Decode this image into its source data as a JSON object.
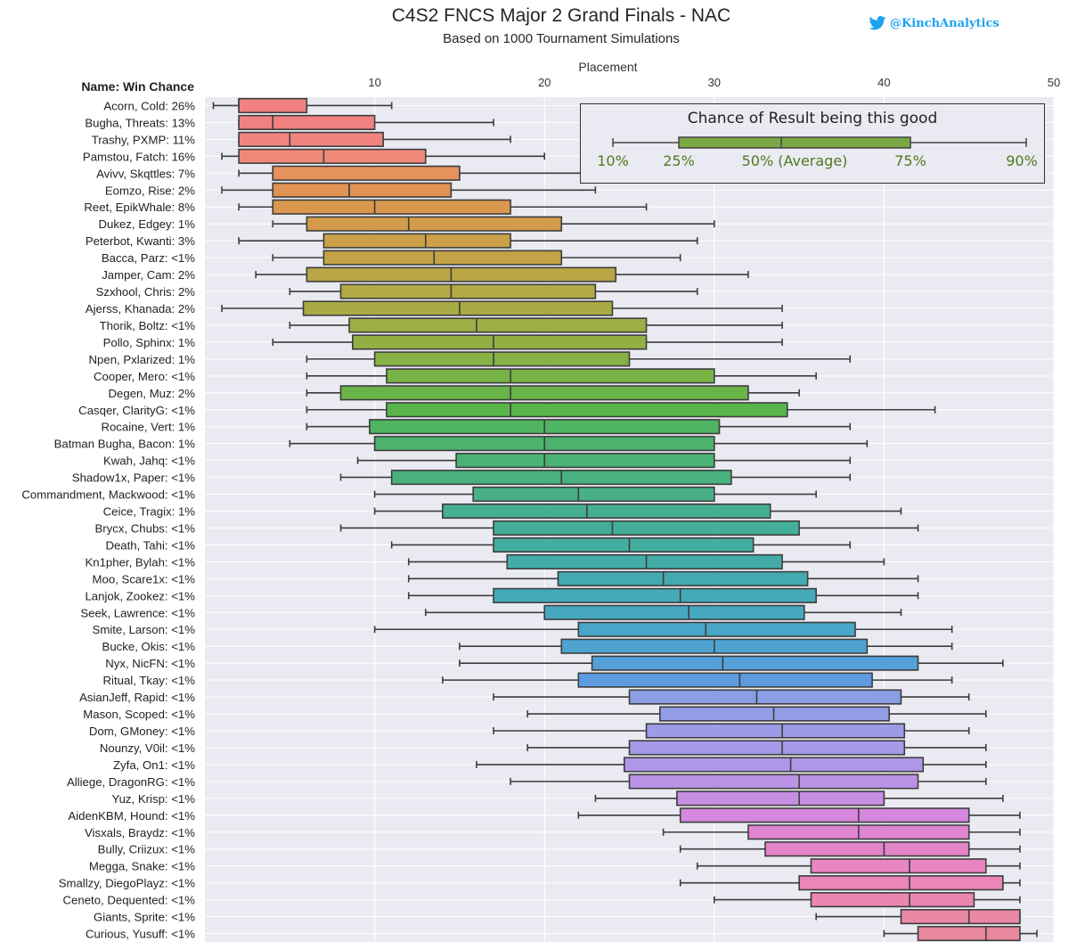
{
  "header": {
    "title": "C4S2 FNCS Major 2 Grand Finals - NAC",
    "subtitle": "Based on 1000 Tournament Simulations",
    "handle": "@KinchAnalytics"
  },
  "legend": {
    "title": "Chance of Result being this good",
    "labels": [
      "10%",
      "25%",
      "50% (Average)",
      "75%",
      "90%"
    ],
    "color": "#7aa843"
  },
  "chart_data": {
    "type": "boxplot",
    "title": "C4S2 FNCS Major 2 Grand Finals - NAC",
    "subtitle": "Based on 1000 Tournament Simulations",
    "xlabel": "Placement",
    "ylabel": "Name: Win Chance",
    "xlim": [
      0,
      50
    ],
    "xticks": [
      10,
      20,
      30,
      40,
      50
    ],
    "tick_position": "top",
    "stats_order": [
      "p10",
      "p25",
      "median",
      "p75",
      "p90"
    ],
    "teams": [
      {
        "label": "Acorn, Cold: 26%",
        "stats": [
          0.5,
          2,
          2,
          6,
          11
        ],
        "color": "#f08180"
      },
      {
        "label": "Bugha, Threats: 13%",
        "stats": [
          2,
          2,
          4,
          10,
          17
        ],
        "color": "#f08180"
      },
      {
        "label": "Trashy, PXMP: 11%",
        "stats": [
          2,
          2,
          5,
          10.5,
          18
        ],
        "color": "#f08580"
      },
      {
        "label": "Pamstou, Fatch: 16%",
        "stats": [
          1,
          2,
          7,
          13,
          20
        ],
        "color": "#f0887a"
      },
      {
        "label": "Avivv, Skqttles: 7%",
        "stats": [
          2,
          4,
          4,
          15,
          25
        ],
        "color": "#e3925c"
      },
      {
        "label": "Eomzo, Rise: 2%",
        "stats": [
          1,
          4,
          8.5,
          14.5,
          23
        ],
        "color": "#e09355"
      },
      {
        "label": "Reet, EpikWhale: 8%",
        "stats": [
          2,
          4,
          10,
          18,
          26
        ],
        "color": "#d9984e"
      },
      {
        "label": "Dukez, Edgey: 1%",
        "stats": [
          4,
          6,
          12,
          21,
          30
        ],
        "color": "#d39c4a"
      },
      {
        "label": "Peterbot, Kwanti: 3%",
        "stats": [
          2,
          7,
          13,
          18,
          29
        ],
        "color": "#cba048"
      },
      {
        "label": "Bacca, Parz: <1%",
        "stats": [
          4,
          7,
          13.5,
          21,
          28
        ],
        "color": "#c3a346"
      },
      {
        "label": "Jamper, Cam: 2%",
        "stats": [
          3,
          6,
          14.5,
          24.2,
          32
        ],
        "color": "#bba645"
      },
      {
        "label": "Szxhool, Chris: 2%",
        "stats": [
          5,
          8,
          14.5,
          23,
          29
        ],
        "color": "#b3a944"
      },
      {
        "label": "Ajerss, Khanada: 2%",
        "stats": [
          1,
          5.8,
          15,
          24,
          34
        ],
        "color": "#a9ab44"
      },
      {
        "label": "Thorik, Boltz: <1%",
        "stats": [
          5,
          8.5,
          16,
          26,
          34
        ],
        "color": "#9ead44"
      },
      {
        "label": "Pollo, Sphinx: 1%",
        "stats": [
          4,
          8.7,
          17,
          26,
          34
        ],
        "color": "#93af44"
      },
      {
        "label": "Npen, Pxlarized: 1%",
        "stats": [
          6,
          10,
          17,
          25,
          38
        ],
        "color": "#86b145"
      },
      {
        "label": "Cooper, Mero: <1%",
        "stats": [
          6,
          10.7,
          18,
          30,
          36
        ],
        "color": "#78b346"
      },
      {
        "label": "Degen, Muz: 2%",
        "stats": [
          6,
          8,
          18,
          32,
          35
        ],
        "color": "#69b448"
      },
      {
        "label": "Casqer, ClarityG: <1%",
        "stats": [
          6,
          10.7,
          18,
          34.3,
          43
        ],
        "color": "#58b54c"
      },
      {
        "label": "Rocaine, Vert: 1%",
        "stats": [
          6,
          9.7,
          20,
          30.3,
          38
        ],
        "color": "#4fb462"
      },
      {
        "label": "Batman Bugha, Bacon: 1%",
        "stats": [
          5,
          10,
          20,
          30,
          39
        ],
        "color": "#4db36c"
      },
      {
        "label": "Kwah, Jahq: <1%",
        "stats": [
          9,
          14.8,
          20,
          30,
          38
        ],
        "color": "#4bb276"
      },
      {
        "label": "Shadow1x, Paper: <1%",
        "stats": [
          8,
          11,
          21,
          31,
          38
        ],
        "color": "#49b17f"
      },
      {
        "label": "Commandment, Mackwood: <1%",
        "stats": [
          10,
          15.8,
          22,
          30,
          36
        ],
        "color": "#47b088"
      },
      {
        "label": "Ceice, Tragix: 1%",
        "stats": [
          10,
          14,
          22.5,
          33.3,
          41
        ],
        "color": "#46af90"
      },
      {
        "label": "Brycx, Chubs: <1%",
        "stats": [
          8,
          17,
          24,
          35,
          42
        ],
        "color": "#44ae98"
      },
      {
        "label": "Death, Tahi: <1%",
        "stats": [
          11,
          17,
          25,
          32.3,
          38
        ],
        "color": "#43ada0"
      },
      {
        "label": "Kn1pher, Bylah: <1%",
        "stats": [
          12,
          17.8,
          26,
          34,
          40
        ],
        "color": "#43aca8"
      },
      {
        "label": "Moo, Scare1x: <1%",
        "stats": [
          12,
          20.8,
          27,
          35.5,
          42
        ],
        "color": "#43abb0"
      },
      {
        "label": "Lanjok, Zookez: <1%",
        "stats": [
          12,
          17,
          28,
          36,
          42
        ],
        "color": "#44aab8"
      },
      {
        "label": "Seek, Lawrence: <1%",
        "stats": [
          13,
          20,
          28.5,
          35.3,
          41
        ],
        "color": "#46a8c0"
      },
      {
        "label": "Smite, Larson: <1%",
        "stats": [
          10,
          22,
          29.5,
          38.3,
          44
        ],
        "color": "#49a6c8"
      },
      {
        "label": "Bucke, Okis: <1%",
        "stats": [
          15,
          21,
          30,
          39,
          44
        ],
        "color": "#4ea3d0"
      },
      {
        "label": "Nyx, NicFN: <1%",
        "stats": [
          15,
          22.8,
          30.5,
          42,
          47
        ],
        "color": "#55a0d8"
      },
      {
        "label": "Ritual, Tkay: <1%",
        "stats": [
          14,
          22,
          31.5,
          39.3,
          44
        ],
        "color": "#5e9cdf"
      },
      {
        "label": "AsianJeff, Rapid: <1%",
        "stats": [
          17,
          25,
          32.5,
          41,
          45
        ],
        "color": "#8a9ee4"
      },
      {
        "label": "Mason, Scoped: <1%",
        "stats": [
          19,
          26.8,
          33.5,
          40.3,
          46
        ],
        "color": "#939de6"
      },
      {
        "label": "Dom, GMoney: <1%",
        "stats": [
          17,
          26,
          34,
          41.2,
          45
        ],
        "color": "#9d9be8"
      },
      {
        "label": "Nounzy, V0il: <1%",
        "stats": [
          19,
          25,
          34,
          41.2,
          46
        ],
        "color": "#a699e8"
      },
      {
        "label": "Zyfa, On1: <1%",
        "stats": [
          16,
          24.7,
          34.5,
          42.3,
          46
        ],
        "color": "#b096e8"
      },
      {
        "label": "Alliege, DragonRG: <1%",
        "stats": [
          18,
          25,
          35,
          42,
          46
        ],
        "color": "#bb92e6"
      },
      {
        "label": "Yuz, Krisp: <1%",
        "stats": [
          23,
          27.8,
          35,
          40,
          47
        ],
        "color": "#c78ee2"
      },
      {
        "label": "AidenKBM, Hound: <1%",
        "stats": [
          22,
          28,
          38.5,
          45,
          48
        ],
        "color": "#d487dc"
      },
      {
        "label": "Visxals, Braydz: <1%",
        "stats": [
          27,
          32,
          38.5,
          45,
          48
        ],
        "color": "#df84d2"
      },
      {
        "label": "Bully, Criizux: <1%",
        "stats": [
          28,
          33,
          40,
          45,
          48
        ],
        "color": "#e585c9"
      },
      {
        "label": "Megga, Snake: <1%",
        "stats": [
          29,
          35.7,
          41.5,
          46,
          48
        ],
        "color": "#e886c1"
      },
      {
        "label": "Smallzy, DiegoPlayz: <1%",
        "stats": [
          28,
          35,
          41.5,
          47,
          48
        ],
        "color": "#ea86b8"
      },
      {
        "label": "Ceneto, Dequented: <1%",
        "stats": [
          30,
          35.7,
          41.5,
          45.3,
          48
        ],
        "color": "#ea86b0"
      },
      {
        "label": "Giants, Sprite: <1%",
        "stats": [
          36,
          41,
          45,
          48,
          48
        ],
        "color": "#ea88a6"
      },
      {
        "label": "Curious, Yusuff: <1%",
        "stats": [
          40,
          42,
          46,
          48,
          49
        ],
        "color": "#e8889c"
      }
    ]
  }
}
